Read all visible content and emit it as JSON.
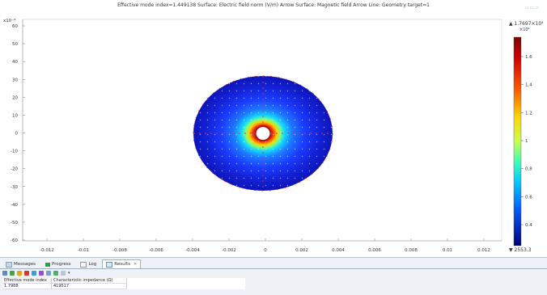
{
  "window": {
    "title": "Effective mode index=1.449138   Surface: Electric field norm (V/m)  Arrow Surface: Magnetic field  Arrow Line: Geometry target=1"
  },
  "plot": {
    "y_exponent": "x10⁻⁶",
    "y_ticks": [
      "60",
      "50",
      "40",
      "30",
      "20",
      "10",
      "0",
      "-10",
      "-20",
      "-30",
      "-40",
      "-50",
      "-60"
    ],
    "x_ticks": [
      "-0.012",
      "-0.01",
      "-0.008",
      "-0.006",
      "-0.004",
      "-0.002",
      "0",
      "0.002",
      "0.004",
      "0.006",
      "0.008",
      "0.01",
      "0.012"
    ],
    "colorbar": {
      "max_label": "▲ 1.7697×10⁴",
      "exponent": "×10⁴",
      "ticks": [
        "1.6",
        "1.4",
        "1.2",
        "1",
        "0.8",
        "0.6",
        "0.4"
      ],
      "min_label": "▼ 2553.3"
    }
  },
  "panel": {
    "tabs": [
      {
        "label": "Messages",
        "icon": "messages-icon"
      },
      {
        "label": "Progress",
        "icon": "progress-icon"
      },
      {
        "label": "Log",
        "icon": "log-icon"
      },
      {
        "label": "Results",
        "icon": "results-icon",
        "active": true
      }
    ],
    "toolbar_icons": [
      "table-icon",
      "refresh-icon",
      "chart-icon",
      "delete-icon",
      "graph-icon",
      "color-icon",
      "copy-icon",
      "export-icon",
      "options-icon",
      "dropdown-icon"
    ],
    "table": {
      "headers": [
        "Effective mode index",
        "Characteristic impedance (Ω)"
      ],
      "rows": [
        [
          "1.7988",
          "419517"
        ]
      ]
    }
  },
  "colors": {
    "ring_marker": "#e0352d",
    "panel_border": "#9fb1c5"
  }
}
